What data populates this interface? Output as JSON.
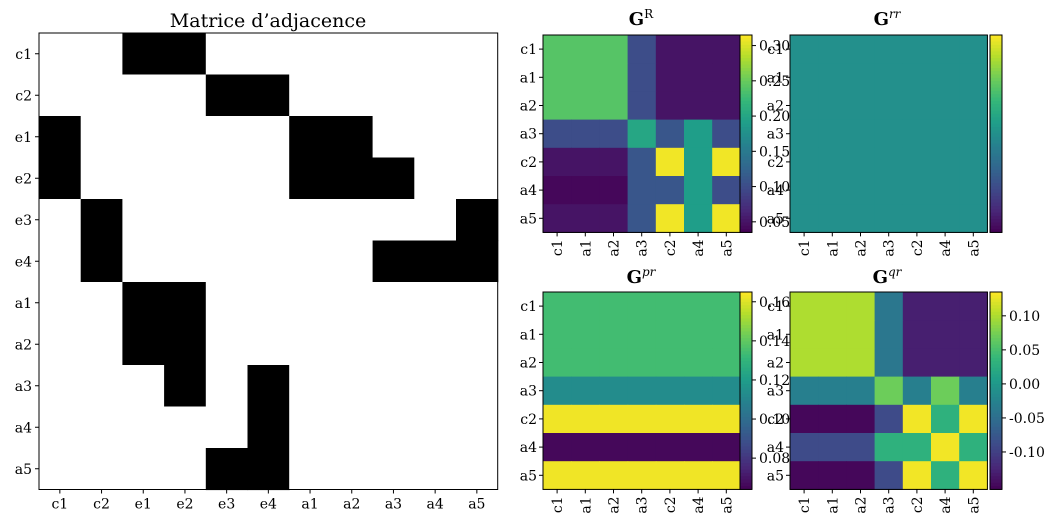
{
  "chart_data": [
    {
      "type": "heatmap",
      "title": "Matrice d’adjacence",
      "rows": [
        "c1",
        "c2",
        "e1",
        "e2",
        "e3",
        "e4",
        "a1",
        "a2",
        "a3",
        "a4",
        "a5"
      ],
      "columns": [
        "c1",
        "c2",
        "e1",
        "e2",
        "e3",
        "e4",
        "a1",
        "a2",
        "a3",
        "a4",
        "a5"
      ],
      "values": [
        [
          0,
          0,
          1,
          1,
          0,
          0,
          0,
          0,
          0,
          0,
          0
        ],
        [
          0,
          0,
          0,
          0,
          1,
          1,
          0,
          0,
          0,
          0,
          0
        ],
        [
          1,
          0,
          0,
          0,
          0,
          0,
          1,
          1,
          0,
          0,
          0
        ],
        [
          1,
          0,
          0,
          0,
          0,
          0,
          1,
          1,
          1,
          0,
          0
        ],
        [
          0,
          1,
          0,
          0,
          0,
          0,
          0,
          0,
          0,
          0,
          1
        ],
        [
          0,
          1,
          0,
          0,
          0,
          0,
          0,
          0,
          1,
          1,
          1
        ],
        [
          0,
          0,
          1,
          1,
          0,
          0,
          0,
          0,
          0,
          0,
          0
        ],
        [
          0,
          0,
          1,
          1,
          0,
          0,
          0,
          0,
          0,
          0,
          0
        ],
        [
          0,
          0,
          0,
          1,
          0,
          1,
          0,
          0,
          0,
          0,
          0
        ],
        [
          0,
          0,
          0,
          0,
          0,
          1,
          0,
          0,
          0,
          0,
          0
        ],
        [
          0,
          0,
          0,
          0,
          1,
          1,
          0,
          0,
          0,
          0,
          0
        ]
      ],
      "colormap": "binary",
      "colors": {
        "zero": "#ffffff",
        "one": "#000000"
      }
    },
    {
      "type": "heatmap",
      "title_main": "G",
      "title_sup": "R",
      "labels": [
        "c1",
        "a1",
        "a2",
        "a3",
        "c2",
        "a4",
        "a5"
      ],
      "values": [
        [
          0.24,
          0.24,
          0.24,
          0.1,
          0.05,
          0.05,
          0.05
        ],
        [
          0.24,
          0.24,
          0.24,
          0.1,
          0.05,
          0.05,
          0.05
        ],
        [
          0.24,
          0.24,
          0.24,
          0.1,
          0.05,
          0.05,
          0.05
        ],
        [
          0.1,
          0.1,
          0.1,
          0.2,
          0.11,
          0.19,
          0.1
        ],
        [
          0.05,
          0.05,
          0.05,
          0.11,
          0.31,
          0.19,
          0.31
        ],
        [
          0.04,
          0.04,
          0.04,
          0.11,
          0.11,
          0.19,
          0.1
        ],
        [
          0.05,
          0.05,
          0.05,
          0.11,
          0.31,
          0.19,
          0.31
        ]
      ],
      "vmin": 0.035,
      "vmax": 0.315,
      "colorbar_ticks": [
        "0.05",
        "0.10",
        "0.15",
        "0.20",
        "0.25",
        "0.30"
      ],
      "colorbar_tick_values": [
        0.05,
        0.1,
        0.15,
        0.2,
        0.25,
        0.3
      ],
      "colormap": "viridis"
    },
    {
      "type": "heatmap",
      "title_main": "G",
      "title_sup": "rr",
      "labels": [
        "c1",
        "a1",
        "a2",
        "a3",
        "c2",
        "a4",
        "a5"
      ],
      "values": [
        [
          0.143,
          0.143,
          0.143,
          0.143,
          0.143,
          0.143,
          0.143
        ],
        [
          0.143,
          0.143,
          0.143,
          0.143,
          0.143,
          0.143,
          0.143
        ],
        [
          0.143,
          0.143,
          0.143,
          0.143,
          0.143,
          0.143,
          0.143
        ],
        [
          0.143,
          0.143,
          0.143,
          0.143,
          0.143,
          0.143,
          0.143
        ],
        [
          0.143,
          0.143,
          0.143,
          0.143,
          0.143,
          0.143,
          0.143
        ],
        [
          0.143,
          0.143,
          0.143,
          0.143,
          0.143,
          0.143,
          0.143
        ],
        [
          0.143,
          0.143,
          0.143,
          0.143,
          0.143,
          0.143,
          0.143
        ]
      ],
      "vmin": 0.0,
      "vmax": 0.286,
      "colorbar_ticks": [],
      "colormap": "viridis"
    },
    {
      "type": "heatmap",
      "title_main": "G",
      "title_sup": "pr",
      "labels": [
        "c1",
        "a1",
        "a2",
        "a3",
        "c2",
        "a4",
        "a5"
      ],
      "values": [
        [
          0.134,
          0.134,
          0.134,
          0.134,
          0.134,
          0.134,
          0.134
        ],
        [
          0.134,
          0.134,
          0.134,
          0.134,
          0.134,
          0.134,
          0.134
        ],
        [
          0.134,
          0.134,
          0.134,
          0.134,
          0.134,
          0.134,
          0.134
        ],
        [
          0.113,
          0.113,
          0.113,
          0.113,
          0.113,
          0.113,
          0.113
        ],
        [
          0.163,
          0.163,
          0.163,
          0.163,
          0.163,
          0.163,
          0.163
        ],
        [
          0.066,
          0.066,
          0.066,
          0.066,
          0.066,
          0.066,
          0.066
        ],
        [
          0.163,
          0.163,
          0.163,
          0.163,
          0.163,
          0.163,
          0.163
        ]
      ],
      "vmin": 0.064,
      "vmax": 0.165,
      "colorbar_ticks": [
        "0.08",
        "0.10",
        "0.12",
        "0.14",
        "0.16"
      ],
      "colorbar_tick_values": [
        0.08,
        0.1,
        0.12,
        0.14,
        0.16
      ],
      "colormap": "viridis"
    },
    {
      "type": "heatmap",
      "title_main": "G",
      "title_sup": "qr",
      "labels": [
        "c1",
        "a1",
        "a2",
        "a3",
        "c2",
        "a4",
        "a5"
      ],
      "values": [
        [
          0.1,
          0.1,
          0.1,
          -0.04,
          -0.13,
          -0.13,
          -0.13
        ],
        [
          0.1,
          0.1,
          0.1,
          -0.04,
          -0.13,
          -0.13,
          -0.13
        ],
        [
          0.1,
          0.1,
          0.1,
          -0.04,
          -0.13,
          -0.13,
          -0.13
        ],
        [
          -0.03,
          -0.03,
          -0.03,
          0.07,
          -0.03,
          0.07,
          -0.03
        ],
        [
          -0.15,
          -0.15,
          -0.15,
          -0.09,
          0.13,
          0.03,
          0.13
        ],
        [
          -0.09,
          -0.09,
          -0.09,
          0.03,
          0.03,
          0.13,
          0.03
        ],
        [
          -0.15,
          -0.15,
          -0.15,
          -0.09,
          0.13,
          0.03,
          0.13
        ]
      ],
      "vmin": -0.155,
      "vmax": 0.135,
      "colorbar_ticks": [
        "0.10",
        "0.05",
        "0.00",
        "-0.05",
        "-0.10"
      ],
      "colorbar_tick_values": [
        0.1,
        0.05,
        0.0,
        -0.05,
        -0.1
      ],
      "colormap": "viridis"
    }
  ]
}
